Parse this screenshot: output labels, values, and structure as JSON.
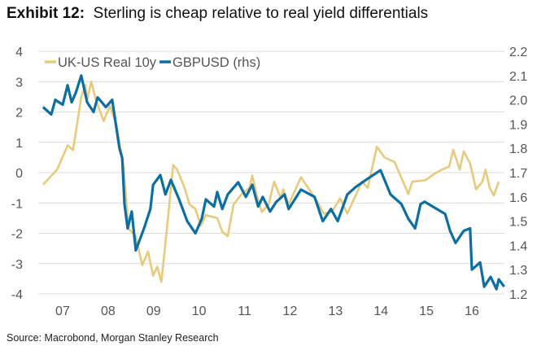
{
  "title": {
    "prefix": "Exhibit 12:",
    "text": "Sterling is cheap relative to real yield differentials"
  },
  "source": "Source: Macrobond, Morgan Stanley Research",
  "chart_data": {
    "type": "line",
    "title": "Sterling is cheap relative to real yield differentials",
    "x_tick_labels": [
      "07",
      "08",
      "09",
      "10",
      "11",
      "12",
      "13",
      "14",
      "15",
      "16"
    ],
    "y_left": {
      "range": [
        -4,
        4
      ],
      "ticks": [
        "4",
        "3",
        "2",
        "1",
        "0",
        "-1",
        "-2",
        "-3",
        "-4"
      ]
    },
    "y_right": {
      "range": [
        1.2,
        2.2
      ],
      "ticks": [
        "2.2",
        "2.1",
        "2.0",
        "1.9",
        "1.8",
        "1.7",
        "1.6",
        "1.5",
        "1.4",
        "1.3",
        "1.2"
      ]
    },
    "grid": "horizontal",
    "legend_placement": "top-left",
    "series": [
      {
        "name": "UK-US Real 10y",
        "axis": "left",
        "color": "#e9c97c",
        "x": [
          2007.07,
          2007.38,
          2007.61,
          2007.73,
          2007.91,
          2008.0,
          2008.04,
          2008.13,
          2008.23,
          2008.4,
          2008.54,
          2008.68,
          2008.84,
          2008.95,
          2009.11,
          2009.25,
          2009.38,
          2009.49,
          2009.58,
          2009.67,
          2009.79,
          2009.93,
          2010.02,
          2010.18,
          2010.29,
          2010.42,
          2010.54,
          2010.65,
          2010.9,
          2011.01,
          2011.13,
          2011.26,
          2011.44,
          2011.61,
          2011.67,
          2011.76,
          2011.88,
          2012.03,
          2012.15,
          2012.3,
          2012.35,
          2012.47,
          2012.74,
          2013.1,
          2013.24,
          2013.42,
          2013.6,
          2013.76,
          2014.08,
          2014.21,
          2014.41,
          2014.58,
          2014.8,
          2015.1,
          2015.19,
          2015.48,
          2015.66,
          2015.84,
          2016.0,
          2016.09,
          2016.23,
          2016.32,
          2016.46,
          2016.59,
          2016.73,
          2016.8,
          2016.89,
          2016.98,
          2017.09
        ],
        "y": [
          -0.4,
          0.1,
          0.9,
          0.75,
          2.5,
          2.9,
          2.4,
          3.0,
          2.4,
          1.7,
          2.2,
          1.6,
          0.2,
          -1.85,
          -2.1,
          -3.05,
          -2.6,
          -3.4,
          -3.1,
          -3.6,
          -1.9,
          0.25,
          0.1,
          -0.5,
          -1.05,
          -1.2,
          -1.75,
          -1.4,
          -1.5,
          -1.95,
          -2.1,
          -1.05,
          -0.7,
          -0.5,
          -0.1,
          -0.7,
          -1.3,
          -1.05,
          -0.3,
          -0.85,
          -0.55,
          -1.05,
          -0.15,
          -0.95,
          -1.35,
          -1.3,
          -0.85,
          -1.35,
          -0.3,
          -0.5,
          0.85,
          0.5,
          0.35,
          -0.7,
          -0.3,
          -0.25,
          -0.05,
          0.1,
          0.2,
          0.75,
          0.1,
          0.7,
          0.3,
          -0.55,
          -0.3,
          0.1,
          -0.5,
          -0.75,
          -0.3
        ]
      },
      {
        "name": "GBPUSD (rhs)",
        "axis": "right",
        "color": "#0b6fa4",
        "x": [
          2007.07,
          2007.25,
          2007.34,
          2007.5,
          2007.61,
          2007.7,
          2007.79,
          2007.91,
          2008.04,
          2008.18,
          2008.27,
          2008.45,
          2008.59,
          2008.75,
          2008.81,
          2008.86,
          2008.93,
          2009.02,
          2009.11,
          2009.29,
          2009.43,
          2009.49,
          2009.65,
          2009.76,
          2009.88,
          2010.06,
          2010.24,
          2010.42,
          2010.56,
          2010.65,
          2010.83,
          2010.9,
          2011.01,
          2011.13,
          2011.36,
          2011.53,
          2011.67,
          2011.8,
          2011.9,
          2012.06,
          2012.2,
          2012.38,
          2012.47,
          2012.74,
          2013.04,
          2013.22,
          2013.4,
          2013.55,
          2013.76,
          2013.94,
          2014.17,
          2014.49,
          2014.71,
          2014.95,
          2015.1,
          2015.25,
          2015.37,
          2015.46,
          2015.73,
          2015.91,
          2016.02,
          2016.14,
          2016.32,
          2016.46,
          2016.5,
          2016.68,
          2016.77,
          2016.91,
          2017.04,
          2017.09,
          2017.21
        ],
        "y": [
          1.97,
          1.94,
          2.0,
          1.98,
          2.06,
          1.99,
          2.03,
          2.1,
          1.99,
          1.95,
          2.01,
          1.97,
          2.0,
          1.8,
          1.76,
          1.57,
          1.47,
          1.54,
          1.38,
          1.47,
          1.55,
          1.65,
          1.69,
          1.61,
          1.67,
          1.59,
          1.5,
          1.45,
          1.51,
          1.59,
          1.56,
          1.62,
          1.55,
          1.61,
          1.66,
          1.6,
          1.65,
          1.56,
          1.6,
          1.54,
          1.58,
          1.61,
          1.55,
          1.63,
          1.6,
          1.5,
          1.55,
          1.5,
          1.61,
          1.64,
          1.67,
          1.71,
          1.61,
          1.57,
          1.51,
          1.47,
          1.57,
          1.58,
          1.55,
          1.53,
          1.46,
          1.41,
          1.46,
          1.47,
          1.3,
          1.33,
          1.23,
          1.27,
          1.22,
          1.26,
          1.23
        ]
      }
    ]
  }
}
